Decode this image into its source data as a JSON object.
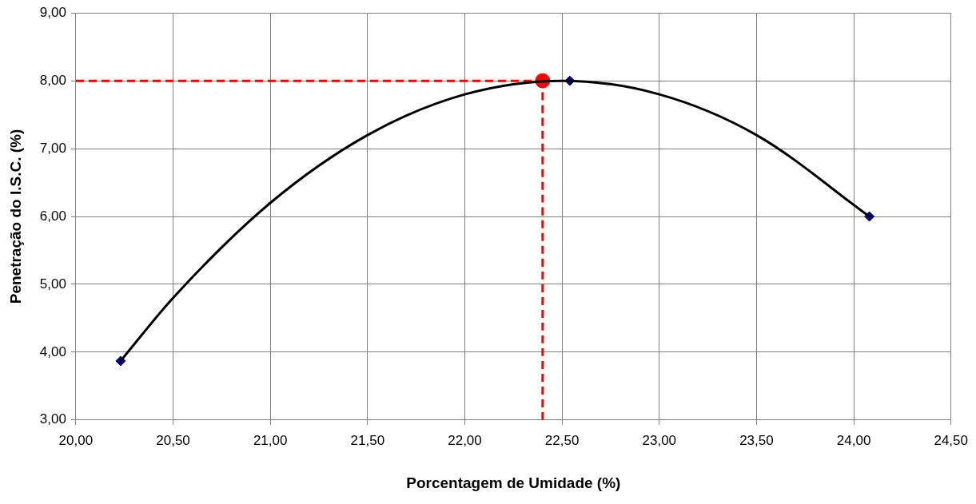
{
  "chart_data": {
    "type": "scatter",
    "xlabel": "Porcentagem de Umidade (%)",
    "ylabel": "Penetração do I.S.C. (%)",
    "xlim": [
      20,
      24.5
    ],
    "xticks": [
      {
        "value": 20,
        "label": "20,00"
      },
      {
        "value": 20.5,
        "label": "20,50"
      },
      {
        "value": 21,
        "label": "21,00"
      },
      {
        "value": 21.5,
        "label": "21,50"
      },
      {
        "value": 22,
        "label": "22,00"
      },
      {
        "value": 22.5,
        "label": "22,50"
      },
      {
        "value": 23,
        "label": "23,00"
      },
      {
        "value": 23.5,
        "label": "23,50"
      },
      {
        "value": 24,
        "label": "24,00"
      },
      {
        "value": 24.5,
        "label": "24,50"
      }
    ],
    "ylim": [
      3,
      9
    ],
    "yticks": [
      {
        "value": 3,
        "label": "3,00"
      },
      {
        "value": 4,
        "label": "4,00"
      },
      {
        "value": 5,
        "label": "5,00"
      },
      {
        "value": 6,
        "label": "6,00"
      },
      {
        "value": 7,
        "label": "7,00"
      },
      {
        "value": 8,
        "label": "8,00"
      },
      {
        "value": 9,
        "label": "9,00"
      }
    ],
    "grid": true,
    "series": [
      {
        "type": "line",
        "color": "#000000",
        "marker": "none",
        "line_style": "solid",
        "x": [
          20.23,
          20.5,
          21,
          21.5,
          22,
          22.5,
          23,
          23.5,
          24.08
        ],
        "values": [
          3.87,
          4.8,
          6.2,
          7.2,
          7.8,
          8.0,
          7.8,
          7.2,
          6.0
        ]
      },
      {
        "type": "line",
        "color": "#ff0000",
        "marker": "none",
        "line_style": "dashed",
        "x": [
          20,
          22.4
        ],
        "values": [
          8,
          8
        ]
      },
      {
        "type": "line",
        "color": "#ff0000",
        "marker": "none",
        "line_style": "dashed",
        "x": [
          22.4,
          22.4
        ],
        "values": [
          3,
          8
        ]
      },
      {
        "color": "#000080",
        "marker": "diamond",
        "x": [
          20.23,
          22.54,
          24.08
        ],
        "values": [
          3.87,
          8.0,
          6.0
        ]
      },
      {
        "color": "#ff0000",
        "marker": "circle",
        "x": [
          22.4
        ],
        "values": [
          8.0
        ]
      }
    ]
  }
}
